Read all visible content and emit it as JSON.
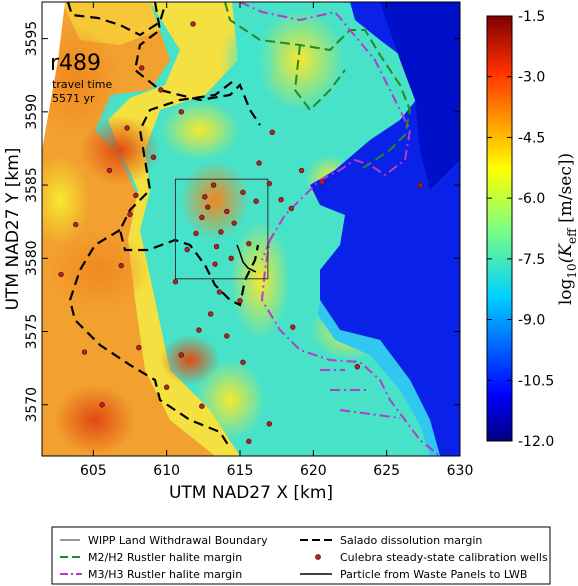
{
  "chart_data": {
    "type": "heatmap",
    "realization": "r489",
    "annotation": [
      "travel time",
      "5571 yr"
    ],
    "xlabel": "UTM NAD27 X [km]",
    "ylabel": "UTM NAD27 Y [km]",
    "xlim": [
      601.5,
      630
    ],
    "ylim": [
      3566.5,
      3597.5
    ],
    "x_ticks": [
      605,
      610,
      615,
      620,
      625,
      630
    ],
    "y_ticks": [
      3570,
      3575,
      3580,
      3585,
      3590,
      3595
    ],
    "colorbar": {
      "label_text": "log",
      "label_sub": "10",
      "label_var": "(K",
      "label_var_sub": "eff",
      "label_units": " [m/sec])",
      "range": [
        -12.0,
        -1.5
      ],
      "ticks": [
        "-1.5",
        "-3.0",
        "-4.5",
        "-6.0",
        "-7.5",
        "-9.0",
        "-10.5",
        "-12.0"
      ],
      "colormap": "jet"
    },
    "wipp_boundary_box": {
      "x": [
        610.6,
        616.9
      ],
      "y": [
        3578.6,
        3585.4
      ]
    },
    "calibration_wells": [
      [
        602.8,
        3578.9
      ],
      [
        603.8,
        3582.3
      ],
      [
        606.1,
        3586.0
      ],
      [
        606.9,
        3579.5
      ],
      [
        607.3,
        3588.9
      ],
      [
        607.9,
        3584.3
      ],
      [
        607.5,
        3583.0
      ],
      [
        608.1,
        3573.9
      ],
      [
        609.1,
        3586.9
      ],
      [
        610.6,
        3578.4
      ],
      [
        611.4,
        3580.6
      ],
      [
        612.0,
        3581.7
      ],
      [
        612.4,
        3582.8
      ],
      [
        612.6,
        3584.2
      ],
      [
        612.8,
        3583.5
      ],
      [
        613.2,
        3585.0
      ],
      [
        613.3,
        3579.6
      ],
      [
        613.4,
        3580.8
      ],
      [
        613.7,
        3581.8
      ],
      [
        614.1,
        3583.2
      ],
      [
        614.4,
        3580.0
      ],
      [
        614.6,
        3582.4
      ],
      [
        615.2,
        3584.5
      ],
      [
        615.6,
        3581.0
      ],
      [
        616.1,
        3583.9
      ],
      [
        616.3,
        3586.5
      ],
      [
        617.0,
        3585.1
      ],
      [
        617.8,
        3584.0
      ],
      [
        618.5,
        3583.4
      ],
      [
        619.2,
        3586.0
      ],
      [
        620.6,
        3585.2
      ],
      [
        613.0,
        3576.2
      ],
      [
        613.6,
        3577.7
      ],
      [
        614.1,
        3574.7
      ],
      [
        615.0,
        3577.1
      ],
      [
        615.2,
        3572.9
      ],
      [
        611.0,
        3573.4
      ],
      [
        610.0,
        3571.2
      ],
      [
        612.4,
        3569.9
      ],
      [
        617.0,
        3568.7
      ],
      [
        618.6,
        3575.3
      ],
      [
        615.6,
        3567.5
      ],
      [
        605.6,
        3570.0
      ],
      [
        623.0,
        3572.6
      ],
      [
        627.3,
        3585.0
      ],
      [
        608.3,
        3593.0
      ],
      [
        611.8,
        3596.0
      ],
      [
        609.6,
        3591.5
      ],
      [
        611.0,
        3590.0
      ],
      [
        617.2,
        3588.6
      ],
      [
        612.2,
        3575.1
      ],
      [
        604.4,
        3573.6
      ]
    ],
    "legend": [
      {
        "label": "WIPP Land Withdrawal Boundary",
        "style": "thin-solid",
        "color": "#333333"
      },
      {
        "label": "Salado dissolution margin",
        "style": "dashed",
        "color": "#000000"
      },
      {
        "label": "M2/H2 Rustler halite margin",
        "style": "dashed",
        "color": "#228b22"
      },
      {
        "label": "Culebra steady-state calibration wells",
        "style": "marker",
        "color": "#b22222"
      },
      {
        "label": "M3/H3 Rustler halite margin",
        "style": "dash-dot",
        "color": "#b43cc8"
      },
      {
        "label": "Particle from Waste Panels to LWB",
        "style": "solid",
        "color": "#000000"
      }
    ]
  },
  "colors": {
    "low": "#0000b0",
    "mid": "#40e0c0",
    "high": "#d22010"
  }
}
